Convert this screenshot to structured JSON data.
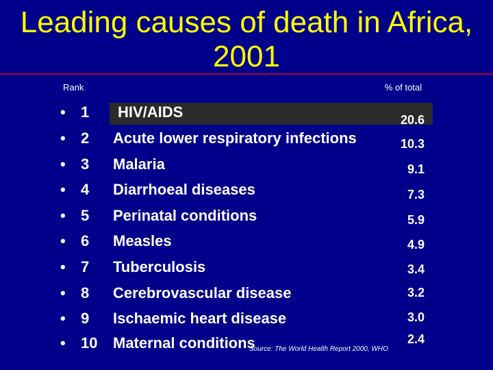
{
  "title_line1": "Leading causes of death in Africa,",
  "title_line2": "2001",
  "header": {
    "rank": "Rank",
    "pct": "% of total"
  },
  "bullet": "•",
  "rows": [
    {
      "rank": "1",
      "cause": "HIV/AIDS",
      "pct": "20.6"
    },
    {
      "rank": "2",
      "cause": "Acute lower respiratory infections",
      "pct": "10.3"
    },
    {
      "rank": "3",
      "cause": "Malaria",
      "pct": "9.1"
    },
    {
      "rank": "4",
      "cause": "Diarrhoeal diseases",
      "pct": "7.3"
    },
    {
      "rank": "5",
      "cause": "Perinatal conditions",
      "pct": "5.9"
    },
    {
      "rank": "6",
      "cause": "Measles",
      "pct": "4.9"
    },
    {
      "rank": "7",
      "cause": "Tuberculosis",
      "pct": "3.4"
    },
    {
      "rank": "8",
      "cause": "Cerebrovascular disease",
      "pct": "3.2"
    },
    {
      "rank": "9",
      "cause": "Ischaemic heart disease",
      "pct": "3.0"
    },
    {
      "rank": "10",
      "cause": "Maternal conditions",
      "pct": "2.4"
    }
  ],
  "source": "Source: The World Health Report 2000, WHO",
  "colors": {
    "background": "#00008a",
    "title": "#ffff00",
    "rule": "#b0003a",
    "highlight": "#2a2a2a"
  }
}
